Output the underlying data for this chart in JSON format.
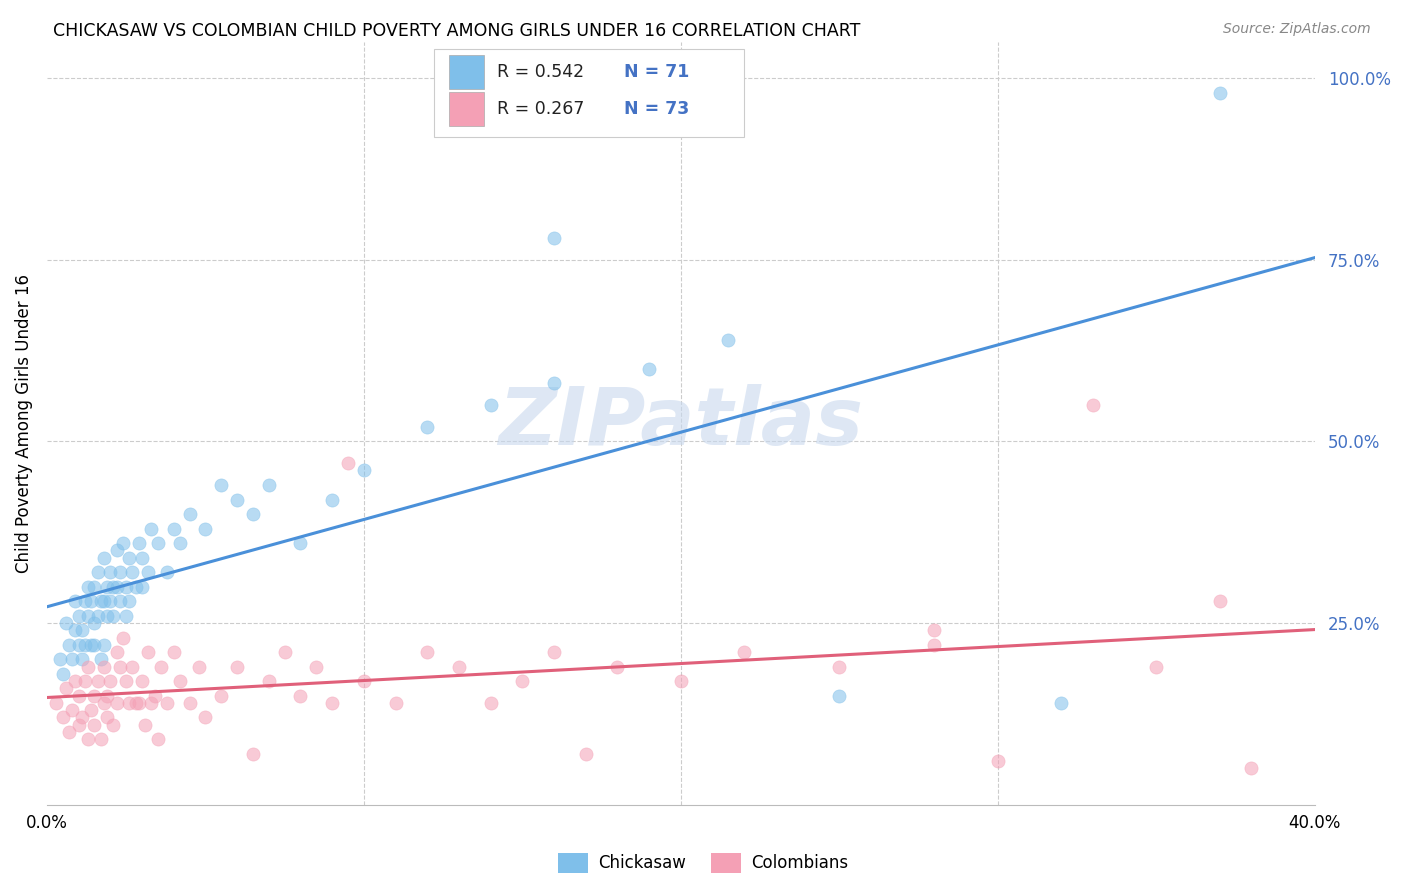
{
  "title": "CHICKASAW VS COLOMBIAN CHILD POVERTY AMONG GIRLS UNDER 16 CORRELATION CHART",
  "source": "Source: ZipAtlas.com",
  "ylabel": "Child Poverty Among Girls Under 16",
  "xlim": [
    0.0,
    0.4
  ],
  "ylim": [
    0.0,
    1.05
  ],
  "xtick_positions": [
    0.0,
    0.1,
    0.2,
    0.3,
    0.4
  ],
  "xticklabels": [
    "0.0%",
    "",
    "",
    "",
    "40.0%"
  ],
  "ytick_positions": [
    0.25,
    0.5,
    0.75,
    1.0
  ],
  "yticklabels_right": [
    "25.0%",
    "50.0%",
    "75.0%",
    "100.0%"
  ],
  "legend_r1": "R = 0.542",
  "legend_n1": "N = 71",
  "legend_r2": "R = 0.267",
  "legend_n2": "N = 73",
  "blue_color": "#7fbfea",
  "pink_color": "#f4a0b5",
  "blue_line_color": "#4a90d9",
  "pink_line_color": "#e0607a",
  "label_blue_color": "#4472c4",
  "watermark_color": "#c8d8ee",
  "watermark_text": "ZIPatlas",
  "chickasaw_x": [
    0.004,
    0.005,
    0.006,
    0.007,
    0.008,
    0.009,
    0.009,
    0.01,
    0.01,
    0.011,
    0.011,
    0.012,
    0.012,
    0.013,
    0.013,
    0.014,
    0.014,
    0.015,
    0.015,
    0.015,
    0.016,
    0.016,
    0.017,
    0.017,
    0.018,
    0.018,
    0.018,
    0.019,
    0.019,
    0.02,
    0.02,
    0.021,
    0.021,
    0.022,
    0.022,
    0.023,
    0.023,
    0.024,
    0.025,
    0.025,
    0.026,
    0.026,
    0.027,
    0.028,
    0.029,
    0.03,
    0.03,
    0.032,
    0.033,
    0.035,
    0.038,
    0.04,
    0.042,
    0.045,
    0.05,
    0.055,
    0.06,
    0.065,
    0.07,
    0.08,
    0.09,
    0.1,
    0.12,
    0.14,
    0.16,
    0.19,
    0.215,
    0.25,
    0.32,
    0.16,
    0.37
  ],
  "chickasaw_y": [
    0.2,
    0.18,
    0.25,
    0.22,
    0.2,
    0.28,
    0.24,
    0.22,
    0.26,
    0.2,
    0.24,
    0.28,
    0.22,
    0.3,
    0.26,
    0.22,
    0.28,
    0.22,
    0.25,
    0.3,
    0.26,
    0.32,
    0.2,
    0.28,
    0.34,
    0.28,
    0.22,
    0.3,
    0.26,
    0.32,
    0.28,
    0.3,
    0.26,
    0.3,
    0.35,
    0.28,
    0.32,
    0.36,
    0.3,
    0.26,
    0.34,
    0.28,
    0.32,
    0.3,
    0.36,
    0.3,
    0.34,
    0.32,
    0.38,
    0.36,
    0.32,
    0.38,
    0.36,
    0.4,
    0.38,
    0.44,
    0.42,
    0.4,
    0.44,
    0.36,
    0.42,
    0.46,
    0.52,
    0.55,
    0.58,
    0.6,
    0.64,
    0.15,
    0.14,
    0.78,
    0.98
  ],
  "colombian_x": [
    0.003,
    0.005,
    0.006,
    0.007,
    0.008,
    0.009,
    0.01,
    0.01,
    0.011,
    0.012,
    0.013,
    0.013,
    0.014,
    0.015,
    0.015,
    0.016,
    0.017,
    0.018,
    0.018,
    0.019,
    0.019,
    0.02,
    0.021,
    0.022,
    0.022,
    0.023,
    0.024,
    0.025,
    0.026,
    0.027,
    0.028,
    0.029,
    0.03,
    0.031,
    0.032,
    0.033,
    0.034,
    0.035,
    0.036,
    0.038,
    0.04,
    0.042,
    0.045,
    0.048,
    0.05,
    0.055,
    0.06,
    0.065,
    0.07,
    0.075,
    0.08,
    0.085,
    0.09,
    0.095,
    0.1,
    0.11,
    0.12,
    0.13,
    0.14,
    0.15,
    0.16,
    0.17,
    0.18,
    0.2,
    0.22,
    0.25,
    0.28,
    0.3,
    0.33,
    0.35,
    0.37,
    0.38,
    0.28
  ],
  "colombian_y": [
    0.14,
    0.12,
    0.16,
    0.1,
    0.13,
    0.17,
    0.11,
    0.15,
    0.12,
    0.17,
    0.09,
    0.19,
    0.13,
    0.15,
    0.11,
    0.17,
    0.09,
    0.14,
    0.19,
    0.12,
    0.15,
    0.17,
    0.11,
    0.21,
    0.14,
    0.19,
    0.23,
    0.17,
    0.14,
    0.19,
    0.14,
    0.14,
    0.17,
    0.11,
    0.21,
    0.14,
    0.15,
    0.09,
    0.19,
    0.14,
    0.21,
    0.17,
    0.14,
    0.19,
    0.12,
    0.15,
    0.19,
    0.07,
    0.17,
    0.21,
    0.15,
    0.19,
    0.14,
    0.47,
    0.17,
    0.14,
    0.21,
    0.19,
    0.14,
    0.17,
    0.21,
    0.07,
    0.19,
    0.17,
    0.21,
    0.19,
    0.22,
    0.06,
    0.55,
    0.19,
    0.28,
    0.05,
    0.24
  ]
}
